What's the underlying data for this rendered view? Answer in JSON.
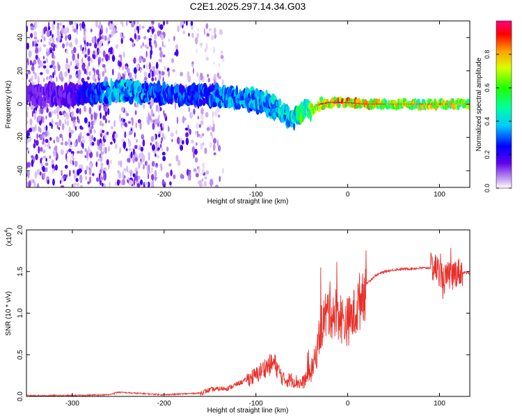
{
  "chart_data": [
    {
      "type": "heatmap",
      "title": "C2E1.2025.297.14.34.G03",
      "xlabel": "Height of straight line (km)",
      "ylabel": "Frequency (Hz)",
      "xlim": [
        -350,
        133
      ],
      "ylim": [
        -50,
        50
      ],
      "xticks": [
        -300,
        -200,
        -100,
        0,
        100
      ],
      "yticks": [
        -40,
        -20,
        0,
        20,
        40
      ],
      "colorbar": {
        "label": "Normalized spectral amplitude",
        "range": [
          0,
          1
        ],
        "ticks": [
          "0.0",
          "0.2",
          "0.4",
          "0.6",
          "0.8"
        ]
      },
      "ridge": {
        "x": [
          -350,
          -300,
          -270,
          -250,
          -200,
          -150,
          -130,
          -110,
          -90,
          -80,
          -70,
          -60,
          -50,
          -40,
          -30,
          -20,
          -10,
          0,
          20,
          50,
          100,
          133
        ],
        "freq": [
          5,
          6,
          7,
          8,
          6,
          5,
          4,
          3,
          1,
          -2,
          -5,
          -9,
          -5,
          -3,
          0,
          1,
          1,
          1,
          0,
          0,
          0,
          0
        ],
        "amp": [
          0.15,
          0.2,
          0.35,
          0.45,
          0.35,
          0.35,
          0.4,
          0.45,
          0.45,
          0.45,
          0.5,
          0.5,
          0.65,
          0.7,
          0.85,
          0.9,
          0.9,
          0.9,
          0.85,
          0.8,
          0.8,
          0.75
        ]
      }
    },
    {
      "type": "line",
      "xlabel": "Height of straight line (km)",
      "ylabel": "SNR (10 * v/v)",
      "multiplier": "(x10",
      "multiplier_exp": "4",
      "xlim": [
        -350,
        133
      ],
      "ylim": [
        0,
        2.0
      ],
      "xticks": [
        -300,
        -200,
        -100,
        0,
        100
      ],
      "yticks": [
        "0.0",
        "0.5",
        "1.0",
        "1.5",
        "2.0"
      ],
      "color": "#e8302a",
      "series": [
        {
          "name": "SNR",
          "x": [
            -350,
            -300,
            -260,
            -250,
            -200,
            -160,
            -150,
            -130,
            -110,
            -100,
            -90,
            -80,
            -75,
            -70,
            -60,
            -50,
            -40,
            -35,
            -30,
            -25,
            -22,
            -20,
            -15,
            -10,
            -5,
            0,
            5,
            10,
            15,
            20,
            30,
            40,
            50,
            60,
            80,
            95,
            100,
            105,
            110,
            120,
            133
          ],
          "y": [
            0.01,
            0.01,
            0.02,
            0.05,
            0.02,
            0.04,
            0.08,
            0.1,
            0.2,
            0.25,
            0.35,
            0.4,
            0.3,
            0.2,
            0.2,
            0.15,
            0.3,
            0.45,
            0.8,
            0.95,
            1.0,
            1.05,
            1.0,
            1.0,
            0.9,
            0.9,
            0.95,
            1.05,
            1.2,
            1.35,
            1.45,
            1.5,
            1.52,
            1.53,
            1.54,
            1.55,
            1.5,
            1.4,
            1.45,
            1.5,
            1.48
          ]
        }
      ]
    }
  ]
}
